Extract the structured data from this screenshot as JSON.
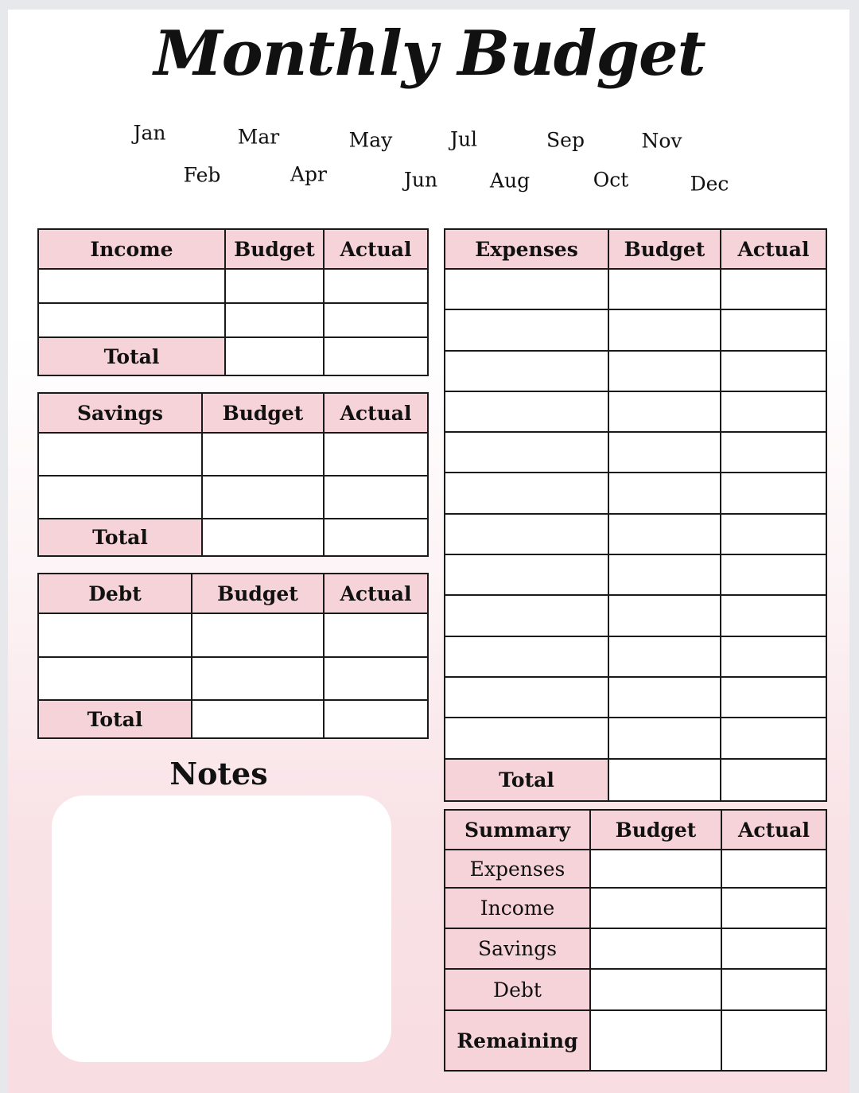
{
  "title": "Monthly Budget",
  "months": [
    "Jan",
    "Feb",
    "Mar",
    "Apr",
    "May",
    "Jun",
    "Jul",
    "Aug",
    "Sep",
    "Oct",
    "Nov",
    "Dec"
  ],
  "colors": {
    "header_fill": "#f6d3d9",
    "border": "#1a1a1a"
  },
  "income": {
    "headers": [
      "Income",
      "Budget",
      "Actual"
    ],
    "total_label": "Total",
    "blank_rows": 2
  },
  "savings": {
    "headers": [
      "Savings",
      "Budget",
      "Actual"
    ],
    "total_label": "Total",
    "blank_rows": 2
  },
  "debt": {
    "headers": [
      "Debt",
      "Budget",
      "Actual"
    ],
    "total_label": "Total",
    "blank_rows": 2
  },
  "expenses": {
    "headers": [
      "Expenses",
      "Budget",
      "Actual"
    ],
    "total_label": "Total",
    "blank_rows": 12
  },
  "summary": {
    "headers": [
      "Summary",
      "Budget",
      "Actual"
    ],
    "rows": [
      "Expenses",
      "Income",
      "Savings",
      "Debt",
      "Remaining"
    ]
  },
  "notes": {
    "title": "Notes"
  }
}
